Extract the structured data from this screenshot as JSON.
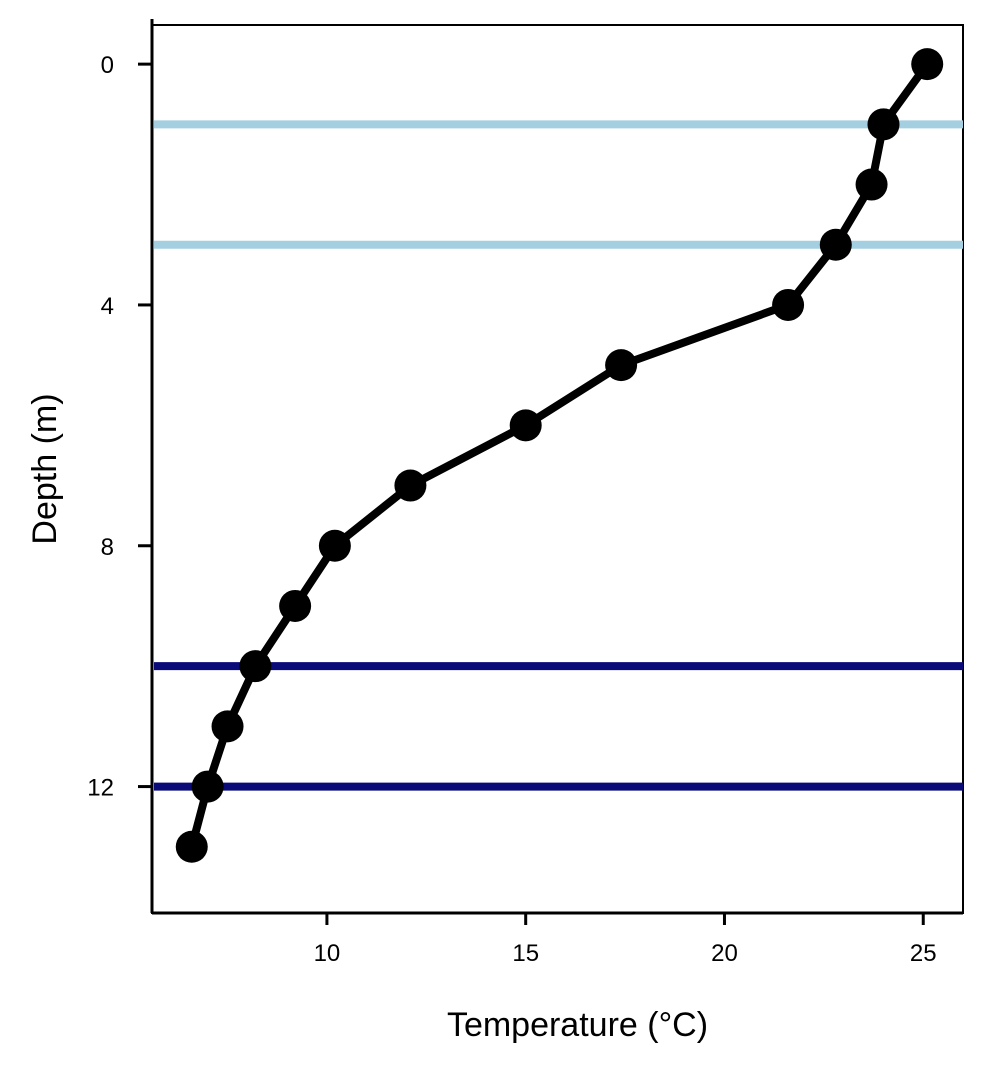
{
  "chart_data": {
    "type": "line",
    "title": "",
    "xlabel": "Temperature (°C)",
    "ylabel": "Depth (m)",
    "xlim": [
      5.6,
      26
    ],
    "ylim": [
      14.1,
      -0.65
    ],
    "y_inverted": true,
    "grid": false,
    "x_ticks": [
      10,
      15,
      20,
      25
    ],
    "y_ticks": [
      0,
      4,
      8,
      12
    ],
    "series": [
      {
        "color": "#000000",
        "marker": "circle",
        "x": [
          25.1,
          24.0,
          23.7,
          22.8,
          21.6,
          17.4,
          15.0,
          12.1,
          10.2,
          9.2,
          8.2,
          7.5,
          7.0,
          6.6
        ],
        "y": [
          0,
          1,
          2,
          3,
          4,
          5,
          6,
          7,
          8,
          9,
          10,
          11,
          12,
          13
        ]
      }
    ],
    "reference_lines": [
      {
        "orientation": "horizontal",
        "y": 1,
        "color": "#a3cfe0"
      },
      {
        "orientation": "horizontal",
        "y": 3,
        "color": "#a3cfe0"
      },
      {
        "orientation": "horizontal",
        "y": 10,
        "color": "#0a0a78"
      },
      {
        "orientation": "horizontal",
        "y": 12,
        "color": "#0a0a78"
      }
    ]
  }
}
